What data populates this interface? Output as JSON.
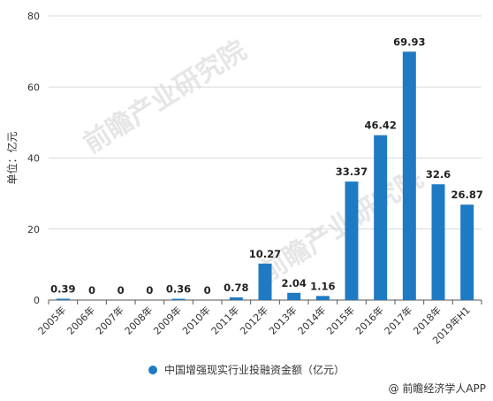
{
  "chart_data": {
    "type": "bar",
    "categories": [
      "2005年",
      "2006年",
      "2007年",
      "2008年",
      "2009年",
      "2010年",
      "2011年",
      "2012年",
      "2013年",
      "2014年",
      "2015年",
      "2016年",
      "2017年",
      "2018年",
      "2019年H1"
    ],
    "series": [
      {
        "name": "中国增强现实行业投融资金额（亿元）",
        "values": [
          0.39,
          0,
          0,
          0,
          0.36,
          0,
          0.78,
          10.27,
          2.04,
          1.16,
          33.37,
          46.42,
          69.93,
          32.6,
          26.87
        ]
      }
    ],
    "data_labels": [
      "0.39",
      "0",
      "0",
      "0",
      "0.36",
      "0",
      "0.78",
      "10.27",
      "2.04",
      "1.16",
      "33.37",
      "46.42",
      "69.93",
      "32.6",
      "26.87"
    ],
    "ylabel": "单位：亿元",
    "ylim": [
      0,
      80
    ],
    "yticks": [
      0,
      20,
      40,
      60,
      80
    ],
    "grid": true,
    "legend_position": "bottom",
    "colors": {
      "bar": "#1f7ac4",
      "grid": "#d9d9d9",
      "axis": "#555555"
    }
  },
  "watermark": {
    "text": "前瞻产业研究院"
  },
  "source": "@ 前瞻经济学人APP"
}
